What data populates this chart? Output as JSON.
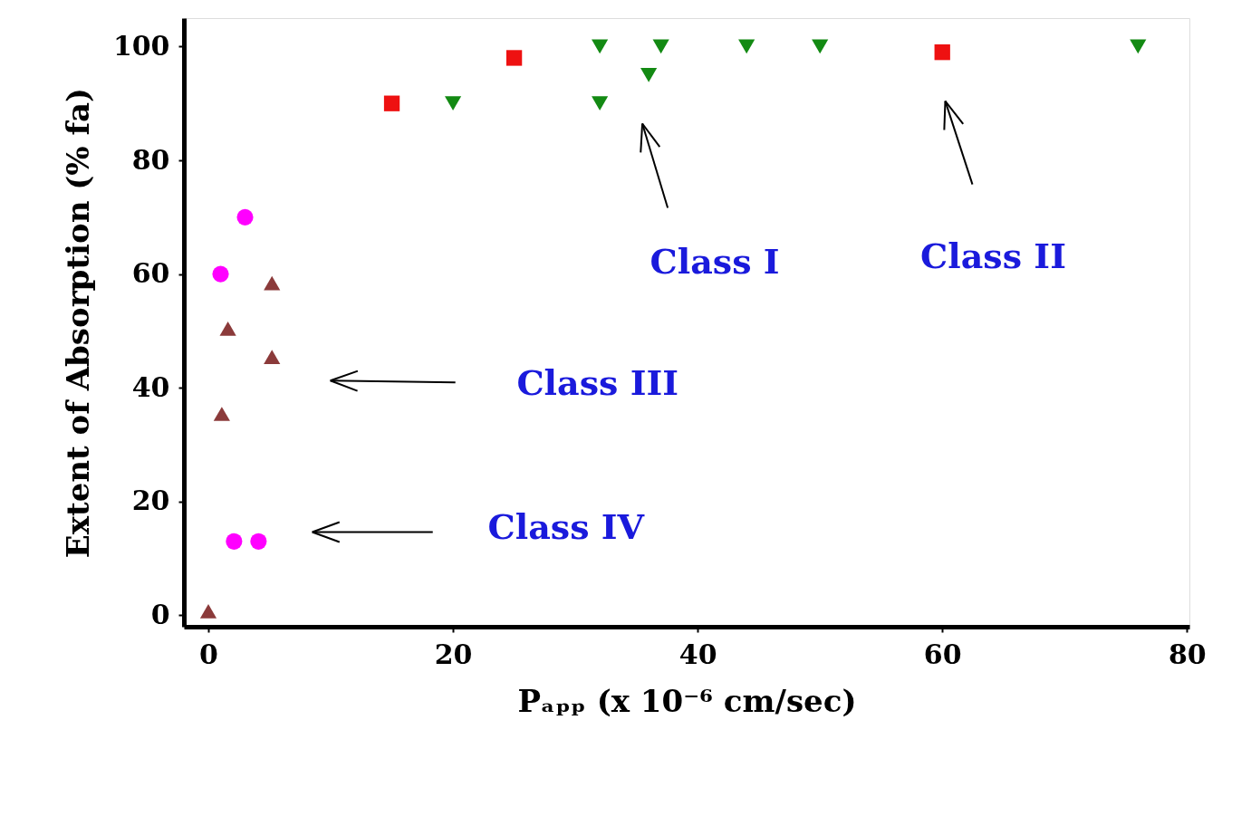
{
  "chart_data": {
    "type": "scatter",
    "xlabel": "Pₐₚₚ (x 10⁻⁶ cm/sec)",
    "ylabel": "Extent of Absorption (% fa)",
    "xlim": [
      -2,
      80.2
    ],
    "ylim": [
      -2,
      105
    ],
    "xticks": [
      0,
      20,
      40,
      60,
      80
    ],
    "yticks": [
      0,
      20,
      40,
      60,
      80,
      100
    ],
    "grid": false,
    "series": [
      {
        "color": "#138a13",
        "marker": "triangle-down",
        "x": [
          20,
          32,
          32,
          36,
          37,
          44,
          50,
          76
        ],
        "values": [
          90,
          100,
          90,
          95,
          100,
          100,
          100,
          100
        ]
      },
      {
        "color": "#ee1111",
        "marker": "square",
        "x": [
          15,
          25,
          60
        ],
        "values": [
          90,
          98,
          99
        ]
      },
      {
        "color": "#8b3a3a",
        "marker": "triangle",
        "x": [
          0,
          1.1,
          1.6,
          5.2,
          5.2
        ],
        "values": [
          0.3,
          35,
          50,
          58,
          45
        ]
      },
      {
        "color": "#ff00ff",
        "marker": "circle",
        "x": [
          3,
          1,
          2.1,
          4.1
        ],
        "values": [
          70,
          60,
          13,
          13
        ]
      }
    ],
    "annotations": [
      "Class I",
      "Class II",
      "Class III",
      "Class IV"
    ]
  }
}
